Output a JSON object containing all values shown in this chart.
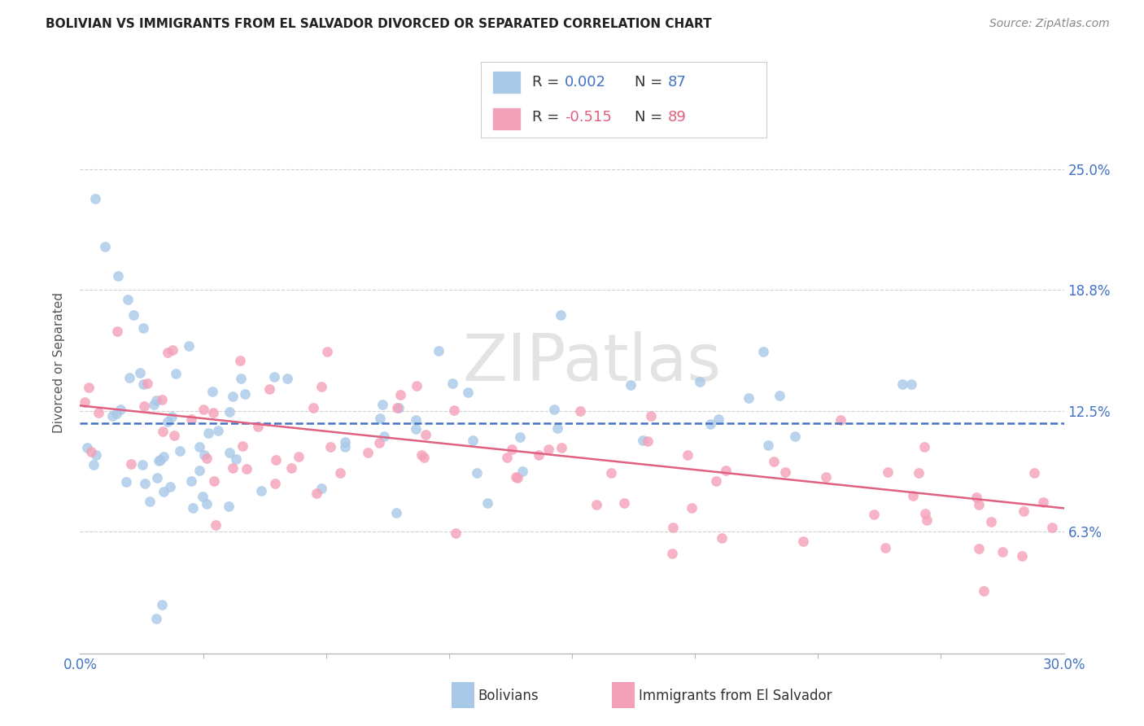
{
  "title": "BOLIVIAN VS IMMIGRANTS FROM EL SALVADOR DIVORCED OR SEPARATED CORRELATION CHART",
  "source": "Source: ZipAtlas.com",
  "ylabel": "Divorced or Separated",
  "xlim": [
    0.0,
    0.3
  ],
  "ylim": [
    0.0,
    0.3
  ],
  "ytick_labels": [
    "6.3%",
    "12.5%",
    "18.8%",
    "25.0%"
  ],
  "ytick_values": [
    0.063,
    0.125,
    0.188,
    0.25
  ],
  "xtick_labels": [
    "0.0%",
    "30.0%"
  ],
  "xtick_values": [
    0.0,
    0.3
  ],
  "legend1_R": "0.002",
  "legend1_N": "87",
  "legend2_R": "-0.515",
  "legend2_N": "89",
  "color_blue": "#a8c8e8",
  "color_pink": "#f4a0b8",
  "line_blue": "#4472c4",
  "line_pink": "#e06080",
  "label1": "Bolivians",
  "label2": "Immigrants from El Salvador",
  "watermark": "ZIPatlas",
  "background_color": "#ffffff",
  "grid_color": "#d0d0d0"
}
